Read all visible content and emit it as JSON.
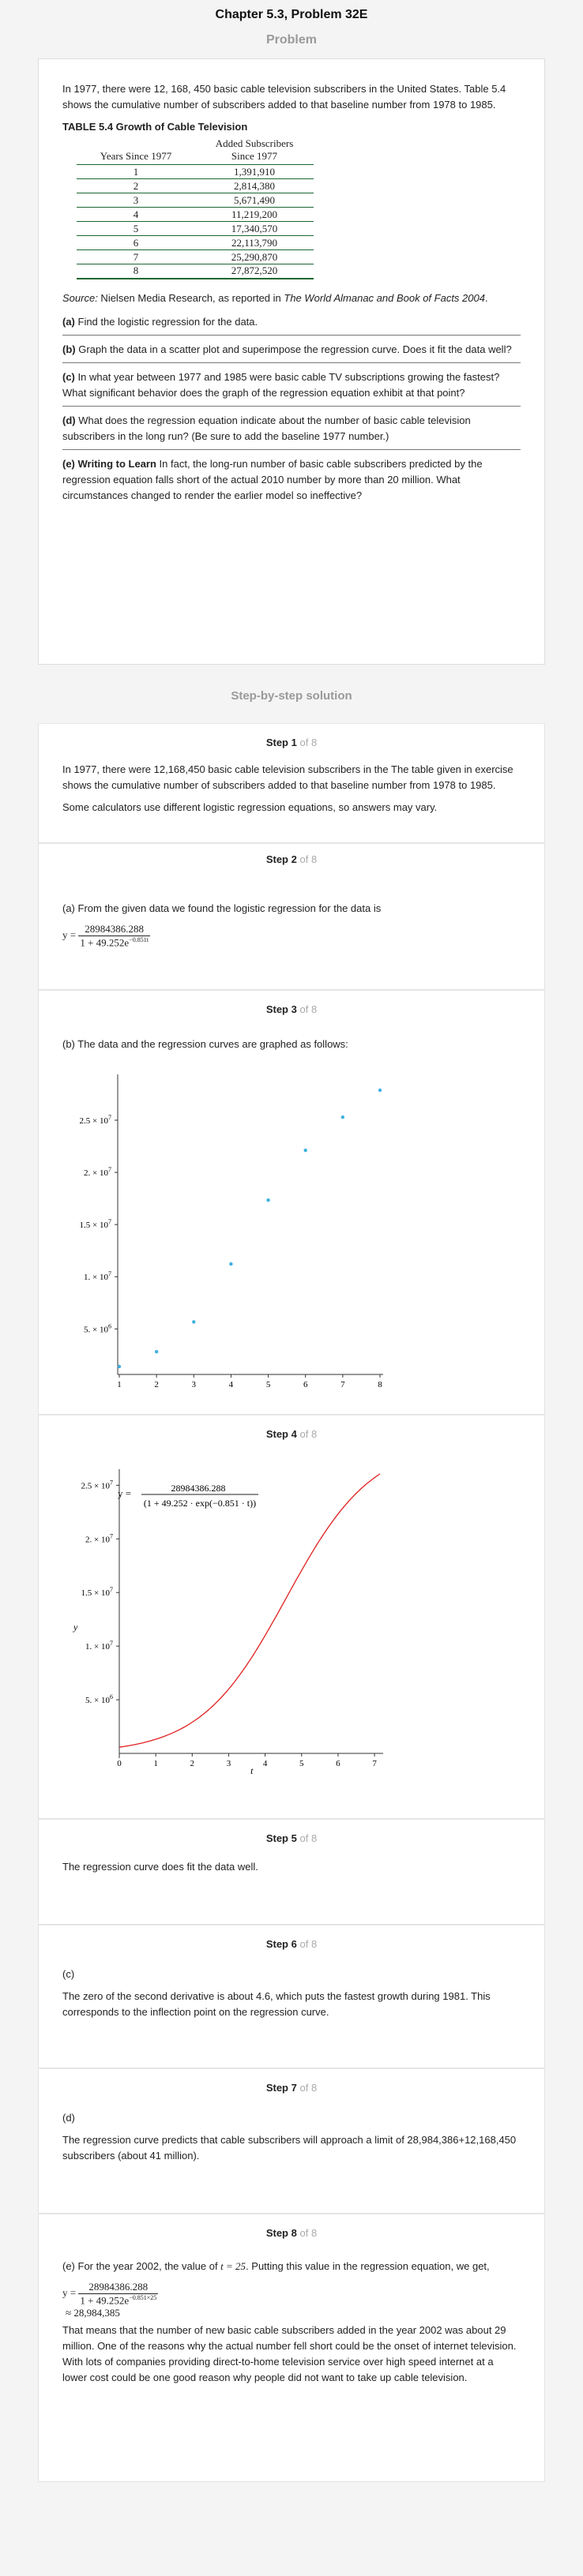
{
  "header": {
    "chapter_title": "Chapter 5.3, Problem 32E",
    "problem_label": "Problem",
    "solution_label": "Step-by-step solution"
  },
  "problem": {
    "intro": "In 1977, there were 12, 168, 450 basic cable television subscribers in the United States. Table 5.4 shows the cumulative number of subscribers added to that baseline number from 1978 to 1985.",
    "table_title": "TABLE 5.4 Growth of Cable Television",
    "table": {
      "col1": "Years Since 1977",
      "col2a": "Added Subscribers",
      "col2b": "Since 1977",
      "rows": [
        [
          "1",
          "1,391,910"
        ],
        [
          "2",
          "2,814,380"
        ],
        [
          "3",
          "5,671,490"
        ],
        [
          "4",
          "11,219,200"
        ],
        [
          "5",
          "17,340,570"
        ],
        [
          "6",
          "22,113,790"
        ],
        [
          "7",
          "25,290,870"
        ],
        [
          "8",
          "27,872,520"
        ]
      ]
    },
    "source_prefix": "Source:",
    "source_text": " Nielsen Media Research, as reported in ",
    "source_italic": "The World Almanac and Book of Facts 2004",
    "source_end": ".",
    "parts": [
      {
        "label": "(a)",
        "text": " Find the logistic regression for the data."
      },
      {
        "label": "(b)",
        "text": " Graph the data in a scatter plot and superimpose the regression curve. Does it fit the data well?"
      },
      {
        "label": "(c)",
        "text": " In what year between 1977 and 1985 were basic cable TV subscriptions growing the fastest? What significant behavior does the graph of the regression equation exhibit at that point?"
      },
      {
        "label": "(d)",
        "text": " What does the regression equation indicate about the number of basic cable television subscribers in the long run? (Be sure to add the baseline 1977 number.)"
      },
      {
        "label": "(e) Writing to Learn",
        "text": " In fact, the long-run number of basic cable subscribers predicted by the regression equation falls short of the actual 2010 number by more than 20 million. What circumstances changed to render the earlier model so ineffective?"
      }
    ]
  },
  "steps": {
    "word_step": "Step",
    "word_of": "of 8",
    "s1": {
      "num": "1",
      "p1": "In 1977, there were 12,168,450 basic cable television subscribers in the The table given in exercise shows the cumulative number of subscribers added to that baseline number from 1978 to 1985.",
      "p2": "Some calculators use different logistic regression equations, so answers may vary."
    },
    "s2": {
      "num": "2",
      "p1": "(a) From the given data we found the logistic regression for the data is",
      "y": "y =",
      "num_expr": "28984386.288",
      "den_expr": "1 + 49.252e",
      "den_exp": "−0.851t"
    },
    "s3": {
      "num": "3",
      "p1": "(b) The data and the regression curves are graphed as follows:"
    },
    "s4": {
      "num": "4",
      "eq_y": "y =",
      "eq_num": "28984386.288",
      "eq_den": "(1 + 49.252 · exp(−0.851 · t))",
      "xlabel": "t",
      "ylabel": "y"
    },
    "s5": {
      "num": "5",
      "p1": "The regression curve does fit the data well."
    },
    "s6": {
      "num": "6",
      "p1": "(c)",
      "p2": "The zero of the second derivative is about 4.6, which puts the fastest growth during 1981. This corresponds to the inflection point on the regression curve."
    },
    "s7": {
      "num": "7",
      "p1": "(d)",
      "p2": "The regression curve predicts that cable subscribers will approach a limit of 28,984,386+12,168,450 subscribers (about 41 million)."
    },
    "s8": {
      "num": "8",
      "p1a": "(e) For the year 2002, the value of ",
      "p1t": "t = 25",
      "p1b": ". Putting this value in the regression equation, we get,",
      "y": "y =",
      "num_expr": "28984386.288",
      "den_expr": "1 + 49.252e",
      "den_exp": "−0.851×25",
      "approx": "≈ 28,984,385",
      "p2": "That means that the number of new basic cable subscribers added in the year 2002 was about 29 million. One of the reasons why the actual number fell short could be the onset of internet television. With lots of companies providing direct-to-home television service over high speed internet at a lower cost could be one good reason why people did not want to take up cable television."
    }
  },
  "chart_data": [
    {
      "type": "scatter",
      "x": [
        1,
        2,
        3,
        4,
        5,
        6,
        7,
        8
      ],
      "y": [
        1391910,
        2814380,
        5671490,
        11219200,
        17340570,
        22113790,
        25290870,
        27872520
      ],
      "xticks": [
        "1",
        "2",
        "3",
        "4",
        "5",
        "6",
        "7",
        "8"
      ],
      "yticks": [
        {
          "v": 5000000,
          "label": "5. × 10",
          "exp": "6"
        },
        {
          "v": 10000000,
          "label": "1. × 10",
          "exp": "7"
        },
        {
          "v": 15000000,
          "label": "1.5 × 10",
          "exp": "7"
        },
        {
          "v": 20000000,
          "label": "2. × 10",
          "exp": "7"
        },
        {
          "v": 25000000,
          "label": "2.5 × 10",
          "exp": "7"
        }
      ],
      "xlim": [
        1,
        8
      ],
      "ylim": [
        1391910,
        27872520
      ],
      "color": "#3fb0e0"
    },
    {
      "type": "line",
      "function": {
        "c": 28984386.288,
        "a": 49.252,
        "b": 0.851
      },
      "xticks": [
        "0",
        "1",
        "2",
        "3",
        "4",
        "5",
        "6",
        "7"
      ],
      "yticks": [
        {
          "v": 5000000,
          "label": "5. × 10",
          "exp": "6"
        },
        {
          "v": 10000000,
          "label": "1. × 10",
          "exp": "7"
        },
        {
          "v": 15000000,
          "label": "1.5 × 10",
          "exp": "7"
        },
        {
          "v": 20000000,
          "label": "2. × 10",
          "exp": "7"
        },
        {
          "v": 25000000,
          "label": "2.5 × 10",
          "exp": "7"
        }
      ],
      "xlim": [
        0,
        7.15
      ],
      "ylim": [
        0,
        26500000
      ],
      "xlabel": "t",
      "ylabel": "y",
      "color": "#e02020"
    }
  ]
}
